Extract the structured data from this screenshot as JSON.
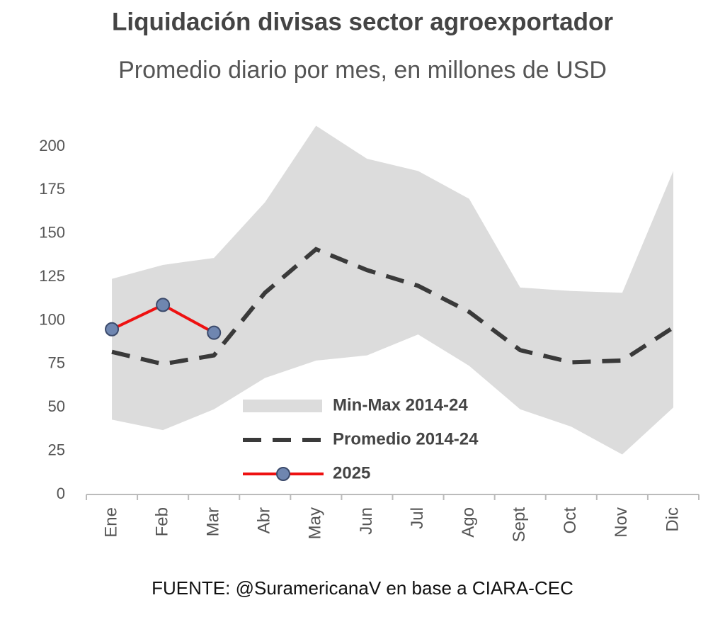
{
  "chart_data": {
    "type": "line",
    "title": "Liquidación divisas sector agroexportador",
    "subtitle": "Promedio diario por mes, en millones de USD",
    "source": "FUENTE: @SuramericanaV en base a CIARA-CEC",
    "categories": [
      "Ene",
      "Feb",
      "Mar",
      "Abr",
      "May",
      "Jun",
      "Jul",
      "Ago",
      "Sept",
      "Oct",
      "Nov",
      "Dic"
    ],
    "ylim": [
      0,
      200
    ],
    "yticks": [
      0,
      25,
      50,
      75,
      100,
      125,
      150,
      175,
      200
    ],
    "legend": "lower center",
    "band": {
      "name": "Min-Max 2014-24",
      "color": "#dcdcdc",
      "low": [
        43,
        37,
        49,
        67,
        77,
        80,
        92,
        74,
        49,
        39,
        23,
        50
      ],
      "high": [
        124,
        132,
        136,
        168,
        212,
        193,
        186,
        170,
        119,
        117,
        116,
        186
      ]
    },
    "series": [
      {
        "name": "Promedio 2014-24",
        "color": "#3a3a3a",
        "style": "dashed",
        "values": [
          82,
          75,
          80,
          116,
          141,
          129,
          120,
          105,
          83,
          76,
          77,
          96
        ]
      },
      {
        "name": "2025",
        "color": "#ee1111",
        "marker_color": "#6f86b0",
        "values": [
          95,
          109,
          93,
          null,
          null,
          null,
          null,
          null,
          null,
          null,
          null,
          null
        ]
      }
    ]
  }
}
